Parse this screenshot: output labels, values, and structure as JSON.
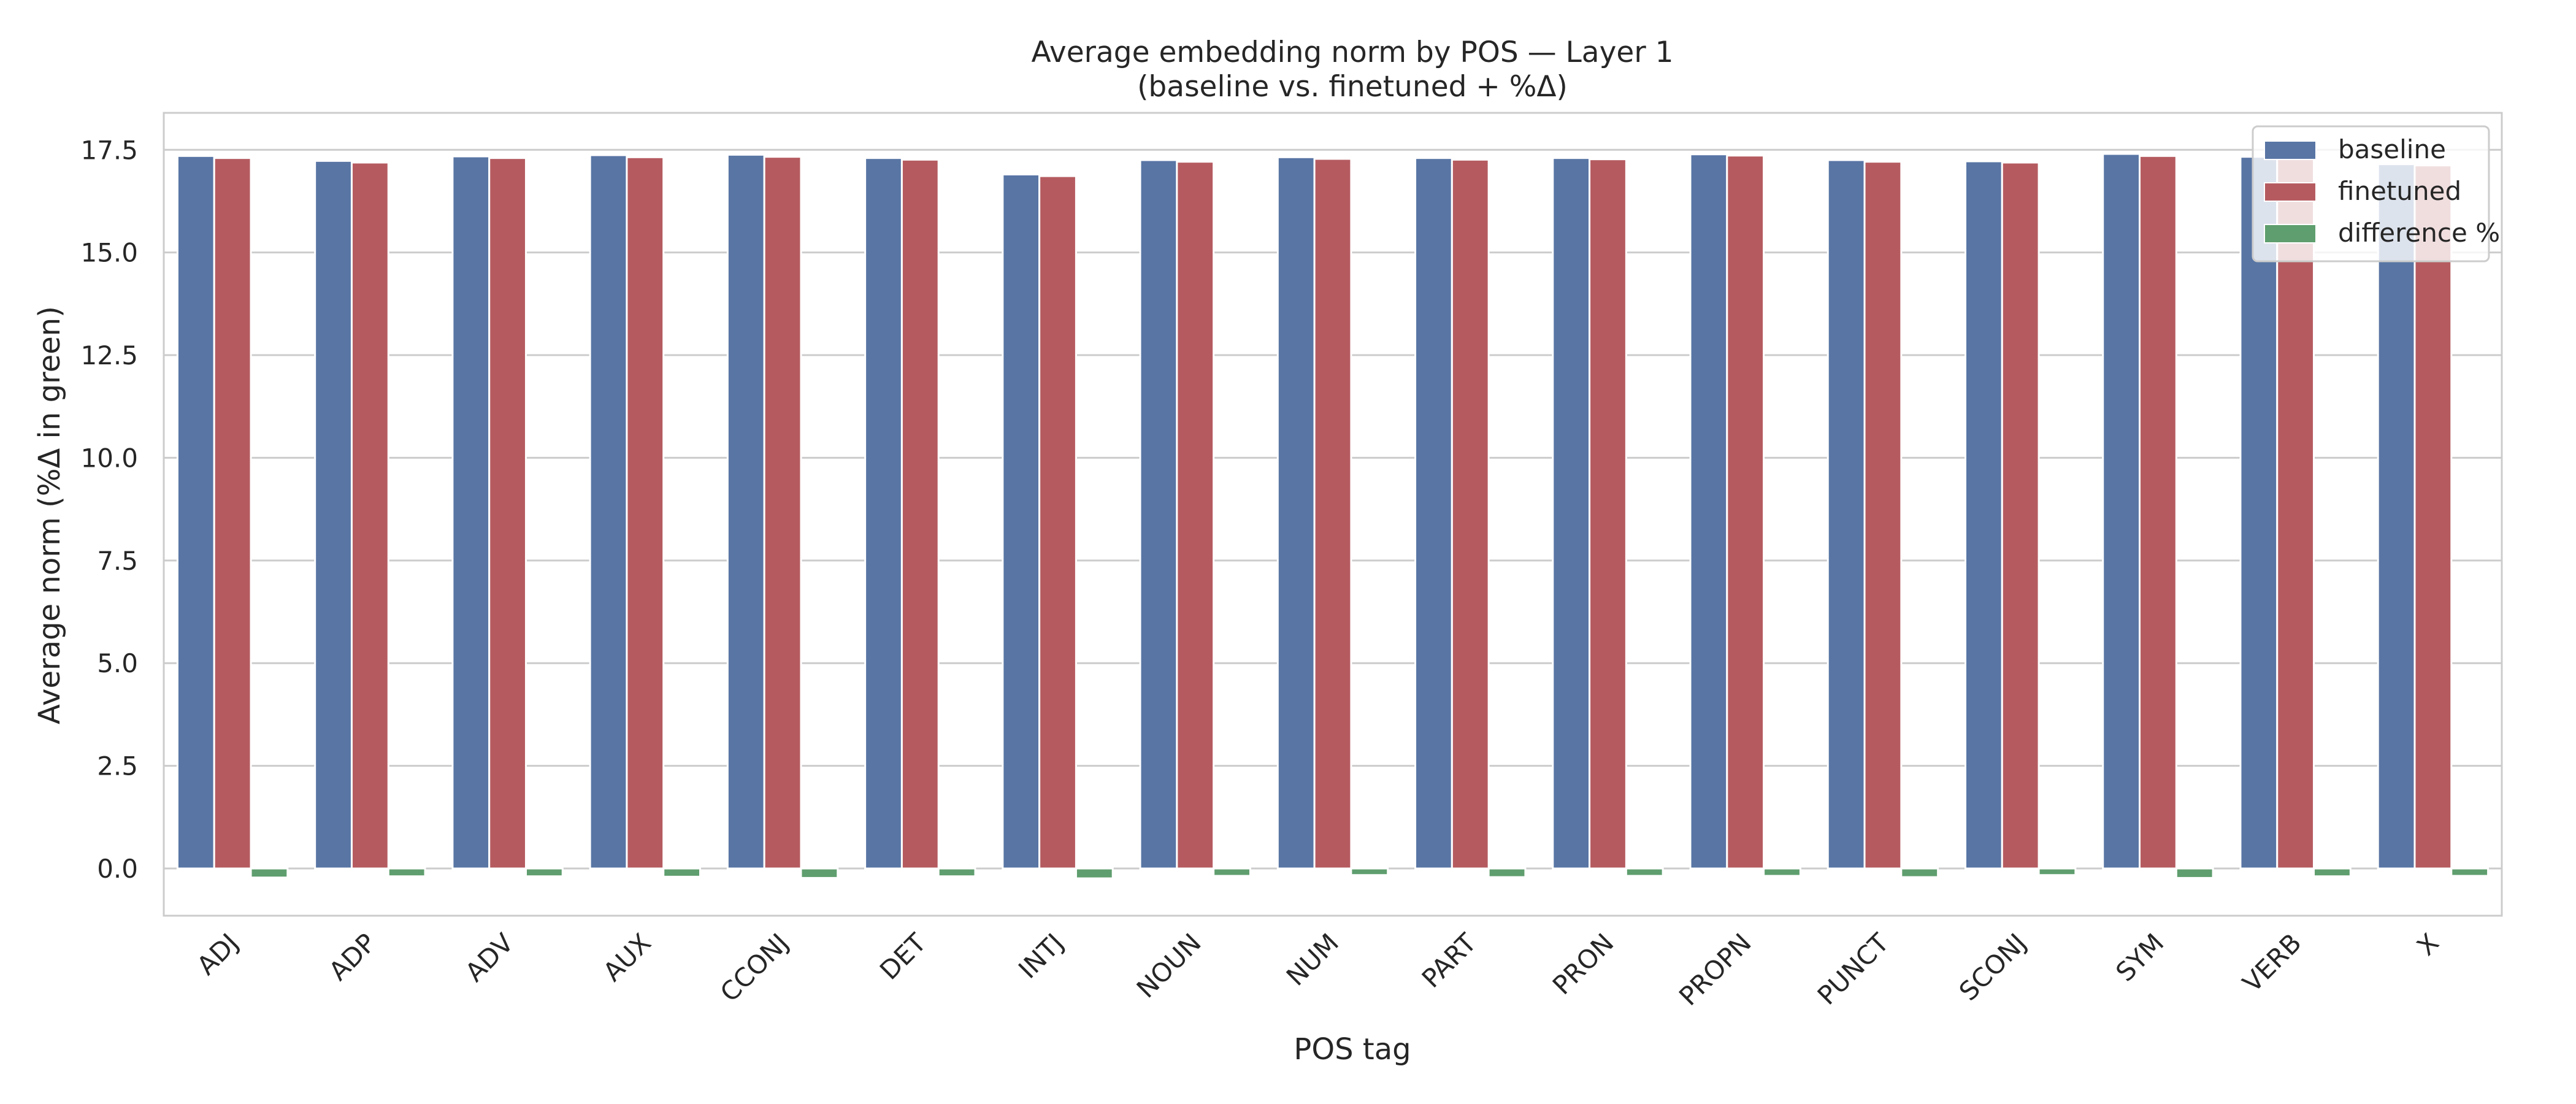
{
  "chart_data": {
    "type": "bar",
    "title": "Average embedding norm by POS — Layer 1",
    "subtitle": "(baseline vs. finetuned + %Δ)",
    "xlabel": "POS tag",
    "ylabel": "Average norm   (%Δ in green)",
    "categories": [
      "ADJ",
      "ADP",
      "ADV",
      "AUX",
      "CCONJ",
      "DET",
      "INTJ",
      "NOUN",
      "NUM",
      "PART",
      "PRON",
      "PROPN",
      "PUNCT",
      "SCONJ",
      "SYM",
      "VERB",
      "X"
    ],
    "series": [
      {
        "name": "baseline",
        "color": "#5875a4",
        "values": [
          17.35,
          17.23,
          17.34,
          17.37,
          17.38,
          17.3,
          16.9,
          17.25,
          17.32,
          17.3,
          17.3,
          17.39,
          17.25,
          17.22,
          17.4,
          17.33,
          17.15
        ]
      },
      {
        "name": "finetuned",
        "color": "#b55b60",
        "values": [
          17.3,
          17.19,
          17.3,
          17.32,
          17.33,
          17.26,
          16.86,
          17.21,
          17.28,
          17.26,
          17.27,
          17.36,
          17.21,
          17.19,
          17.35,
          17.29,
          17.12
        ]
      },
      {
        "name": "difference %",
        "color": "#5f9e6e",
        "values": [
          -0.22,
          -0.19,
          -0.19,
          -0.2,
          -0.23,
          -0.19,
          -0.24,
          -0.18,
          -0.16,
          -0.21,
          -0.18,
          -0.18,
          -0.21,
          -0.16,
          -0.23,
          -0.19,
          -0.18
        ]
      }
    ],
    "ylim": [
      -1.15,
      18.4
    ],
    "yticks": [
      "0.0",
      "2.5",
      "5.0",
      "7.5",
      "10.0",
      "12.5",
      "15.0",
      "17.5"
    ],
    "grid": true,
    "legend_position": "top-right"
  }
}
